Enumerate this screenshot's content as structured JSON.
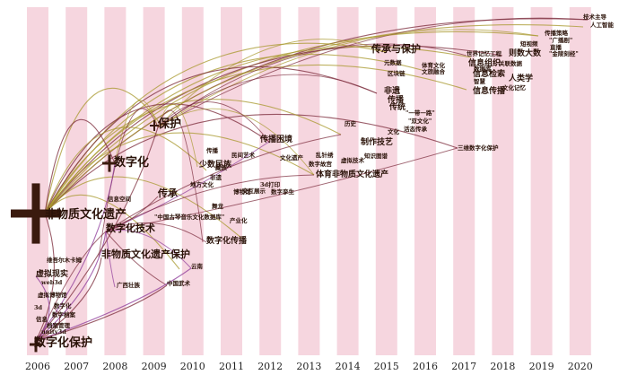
{
  "years": [
    "2006",
    "2007",
    "2008",
    "2009",
    "2010",
    "2011",
    "2012",
    "2013",
    "2014",
    "2015",
    "2016",
    "2017",
    "2018",
    "2019",
    "2020"
  ],
  "colors": {
    "stripe": "#f6d6df",
    "gold": "#a8982e",
    "maroon": "#7b2a3a",
    "purple": "#8e3a9a",
    "node": "#3a1a0e"
  },
  "keywords": [
    {
      "text": "非物质文化遗产",
      "size": "xl"
    },
    {
      "text": "数字化保护",
      "size": "xl"
    },
    {
      "text": "数字化",
      "size": "xl"
    },
    {
      "text": "保护",
      "size": "xl"
    },
    {
      "text": "数字化技术",
      "size": "l"
    },
    {
      "text": "非物质文化遗产保护",
      "size": "l"
    },
    {
      "text": "传承",
      "size": "l"
    },
    {
      "text": "信息空间",
      "size": "s"
    },
    {
      "text": "\"中国古琴音乐文化数据库\"",
      "size": "s"
    },
    {
      "text": "数字化传播",
      "size": "m"
    },
    {
      "text": "虚拟现实",
      "size": "m"
    },
    {
      "text": "维吾尔木卡姆",
      "size": "s"
    },
    {
      "text": "web3d",
      "size": "s"
    },
    {
      "text": "虚拟博物馆",
      "size": "s"
    },
    {
      "text": "3d",
      "size": "s"
    },
    {
      "text": "信息",
      "size": "s"
    },
    {
      "text": "数字档案",
      "size": "s"
    },
    {
      "text": "档案管理",
      "size": "s"
    },
    {
      "text": "unity3d",
      "size": "s"
    },
    {
      "text": "数字化",
      "size": "s"
    },
    {
      "text": "少数民族",
      "size": "m"
    },
    {
      "text": "传播",
      "size": "s"
    },
    {
      "text": "非遗",
      "size": "s"
    },
    {
      "text": "博物馆",
      "size": "s"
    },
    {
      "text": "交互展示",
      "size": "s"
    },
    {
      "text": "体育非物质文化遗产",
      "size": "m"
    },
    {
      "text": "传播困境",
      "size": "m"
    },
    {
      "text": "制作技艺",
      "size": "m"
    },
    {
      "text": "传承与保护",
      "size": "l"
    },
    {
      "text": "非遗",
      "size": "m"
    },
    {
      "text": "传播",
      "size": "m"
    },
    {
      "text": "传统",
      "size": "m"
    },
    {
      "text": "\"一带一路\"",
      "size": "s"
    },
    {
      "text": "\"双文化\"",
      "size": "s"
    },
    {
      "text": "虚拟技术",
      "size": "s"
    },
    {
      "text": "三维数字化保护",
      "size": "s"
    },
    {
      "text": "世界记忆工程",
      "size": "s"
    },
    {
      "text": "信息组织",
      "size": "m"
    },
    {
      "text": "信息检索",
      "size": "m"
    },
    {
      "text": "信息传播",
      "size": "m"
    },
    {
      "text": "则数大数",
      "size": "m"
    },
    {
      "text": "人类学",
      "size": "m"
    },
    {
      "text": "传播策略",
      "size": "s"
    },
    {
      "text": "\"广播剧\"",
      "size": "s"
    },
    {
      "text": "技术主导",
      "size": "s"
    },
    {
      "text": "人工智能",
      "size": "s"
    },
    {
      "text": "中国武术",
      "size": "s"
    },
    {
      "text": "云南",
      "size": "s"
    },
    {
      "text": "广西壮族",
      "size": "s"
    },
    {
      "text": "产业化",
      "size": "s"
    },
    {
      "text": "乱针绣",
      "size": "s"
    },
    {
      "text": "数字故宫",
      "size": "s"
    },
    {
      "text": "元数据",
      "size": "s"
    },
    {
      "text": "体育文化",
      "size": "s"
    },
    {
      "text": "3d打印",
      "size": "s"
    },
    {
      "text": "数字孪生",
      "size": "s"
    },
    {
      "text": "地方文化",
      "size": "s"
    },
    {
      "text": "民间艺术",
      "size": "s"
    },
    {
      "text": "藏族",
      "size": "s"
    },
    {
      "text": "舞龙",
      "size": "s"
    },
    {
      "text": "文化遗产",
      "size": "s"
    },
    {
      "text": "历史",
      "size": "s"
    },
    {
      "text": "文化",
      "size": "s"
    },
    {
      "text": "区块链",
      "size": "s"
    },
    {
      "text": "文旅融合",
      "size": "s"
    },
    {
      "text": "智慧",
      "size": "s"
    },
    {
      "text": "短视频",
      "size": "s"
    },
    {
      "text": "直播",
      "size": "s"
    },
    {
      "text": "\"金陵刻经\"",
      "size": "s"
    },
    {
      "text": "活态传承",
      "size": "s"
    },
    {
      "text": "知识图谱",
      "size": "s"
    },
    {
      "text": "文化记忆",
      "size": "s"
    },
    {
      "text": "关联数据",
      "size": "s"
    },
    {
      "text": "数据库",
      "size": "s"
    }
  ]
}
